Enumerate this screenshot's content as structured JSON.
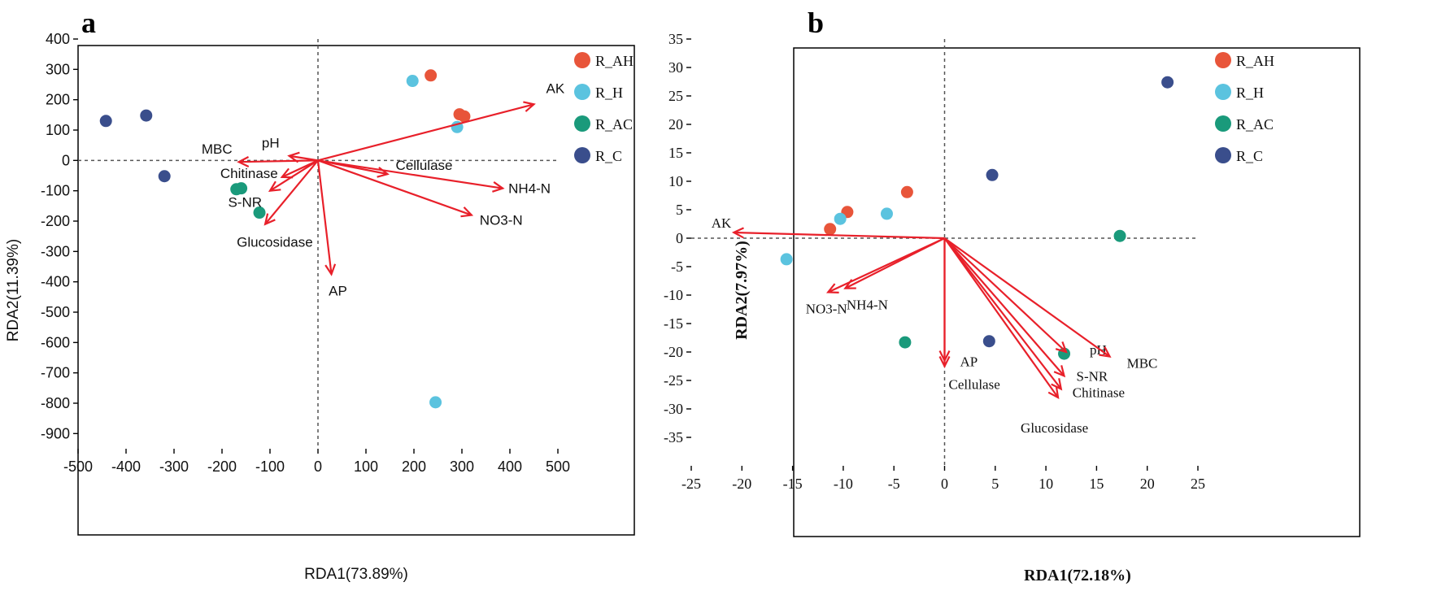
{
  "chart_data": [
    {
      "type": "scatter",
      "panel_label": "a",
      "title": "",
      "xlabel": "RDA1(73.89%)",
      "ylabel": "RDA2(11.39%)",
      "xlim": [
        -500,
        500
      ],
      "ylim": [
        -950,
        400
      ],
      "xticks": [
        -500,
        -400,
        -300,
        -200,
        -100,
        0,
        100,
        200,
        300,
        400,
        500
      ],
      "yticks": [
        400,
        300,
        200,
        100,
        0,
        -100,
        -200,
        -300,
        -400,
        -500,
        -600,
        -700,
        -800,
        -900
      ],
      "legend": [
        "R_AH",
        "R_H",
        "R_AC",
        "R_C"
      ],
      "series": [
        {
          "name": "R_AH",
          "color": "#e8553a",
          "points": [
            [
              235,
              280
            ],
            [
              295,
              152
            ],
            [
              305,
              145
            ]
          ]
        },
        {
          "name": "R_H",
          "color": "#5bc3df",
          "points": [
            [
              197,
              262
            ],
            [
              290,
              110
            ],
            [
              245,
              -797
            ]
          ]
        },
        {
          "name": "R_AC",
          "color": "#1a9a7b",
          "points": [
            [
              -170,
              -95
            ],
            [
              -160,
              -92
            ],
            [
              -122,
              -172
            ]
          ]
        },
        {
          "name": "R_C",
          "color": "#3a4e8c",
          "points": [
            [
              -442,
              130
            ],
            [
              -358,
              148
            ],
            [
              -320,
              -52
            ]
          ]
        }
      ],
      "vectors": [
        {
          "label": "AK",
          "x": 450,
          "y": 185
        },
        {
          "label": "NH4-N",
          "x": 385,
          "y": -92
        },
        {
          "label": "NO3-N",
          "x": 320,
          "y": -180
        },
        {
          "label": "Cellulase",
          "x": 145,
          "y": -45
        },
        {
          "label": "AP",
          "x": 28,
          "y": -375
        },
        {
          "label": "MBC",
          "x": -165,
          "y": -5
        },
        {
          "label": "pH",
          "x": -60,
          "y": 15
        },
        {
          "label": "Chitinase",
          "x": -75,
          "y": -55
        },
        {
          "label": "S-NR",
          "x": -100,
          "y": -100
        },
        {
          "label": "Glucosidase",
          "x": -110,
          "y": -210
        }
      ]
    },
    {
      "type": "scatter",
      "panel_label": "b",
      "title": "",
      "xlabel": "RDA1(72.18%)",
      "ylabel": "RDA2(7.97%)",
      "xlim": [
        -25,
        25
      ],
      "ylim": [
        -40,
        35
      ],
      "xticks": [
        -25,
        -20,
        -15,
        -10,
        -5,
        0,
        5,
        10,
        15,
        20,
        25
      ],
      "yticks": [
        35,
        30,
        25,
        20,
        15,
        10,
        5,
        0,
        -5,
        -10,
        -15,
        -20,
        -25,
        -30,
        -35
      ],
      "legend": [
        "R_AH",
        "R_H",
        "R_AC",
        "R_C"
      ],
      "series": [
        {
          "name": "R_AH",
          "color": "#e8553a",
          "points": [
            [
              -3.7,
              8.1
            ],
            [
              -9.6,
              4.6
            ],
            [
              -11.3,
              1.6
            ]
          ]
        },
        {
          "name": "R_H",
          "color": "#5bc3df",
          "points": [
            [
              -5.7,
              4.3
            ],
            [
              -10.3,
              3.4
            ],
            [
              -15.6,
              -3.7
            ]
          ]
        },
        {
          "name": "R_AC",
          "color": "#1a9a7b",
          "points": [
            [
              17.3,
              0.4
            ],
            [
              11.8,
              -20.3
            ],
            [
              -3.9,
              -18.3
            ]
          ]
        },
        {
          "name": "R_C",
          "color": "#3a4e8c",
          "points": [
            [
              22.0,
              27.4
            ],
            [
              4.7,
              11.1
            ],
            [
              4.4,
              -18.1
            ]
          ]
        }
      ],
      "vectors": [
        {
          "label": "AK",
          "x": -20.8,
          "y": 1.0
        },
        {
          "label": "NO3-N",
          "x": -11.5,
          "y": -9.5
        },
        {
          "label": "NH4-N",
          "x": -9.8,
          "y": -8.8
        },
        {
          "label": "AP",
          "x": 0.0,
          "y": -21.5
        },
        {
          "label": "Cellulase",
          "x": 0.0,
          "y": -22.5
        },
        {
          "label": "pH",
          "x": 12.0,
          "y": -20.0
        },
        {
          "label": "MBC",
          "x": 16.3,
          "y": -20.8
        },
        {
          "label": "S-NR",
          "x": 11.8,
          "y": -24.2
        },
        {
          "label": "Chitinase",
          "x": 11.5,
          "y": -26.5
        },
        {
          "label": "Glucosidase",
          "x": 11.2,
          "y": -28.0
        }
      ]
    }
  ]
}
